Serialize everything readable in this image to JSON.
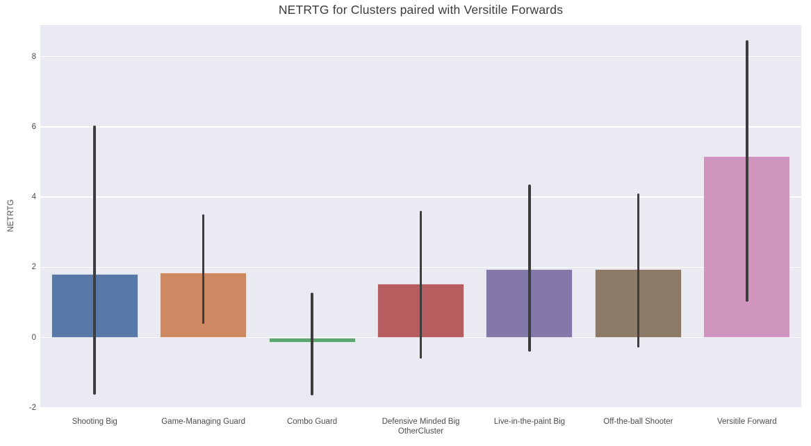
{
  "chart_data": {
    "type": "bar",
    "title": "NETRTG for Clusters paired with Versitile Forwards",
    "xlabel": "OtherCluster",
    "ylabel": "NETRTG",
    "ylim": [
      -2.0,
      8.9
    ],
    "yticks": [
      -2,
      0,
      2,
      4,
      6,
      8
    ],
    "grid": true,
    "legend": "none",
    "categories": [
      "Shooting Big",
      "Game-Managing Guard",
      "Combo Guard",
      "Defensive Minded Big",
      "Live-in-the-paint Big",
      "Off-the-ball Shooter",
      "Versitile Forward"
    ],
    "values": [
      1.82,
      1.85,
      -0.15,
      1.53,
      1.94,
      1.95,
      5.16
    ],
    "error_low": [
      -1.62,
      0.38,
      -1.65,
      -0.6,
      -0.4,
      -0.28,
      1.02
    ],
    "error_high": [
      6.03,
      3.5,
      1.27,
      3.6,
      4.36,
      4.1,
      8.47
    ],
    "bar_colors": [
      "#5878a8",
      "#cd8a62",
      "#5ca470",
      "#b65d60",
      "#8478a8",
      "#8c7966",
      "#d095be"
    ],
    "plot_background": "#eaeaf2",
    "gridline_color": "#ffffff",
    "errorbar_color": "#3d3d3d"
  }
}
